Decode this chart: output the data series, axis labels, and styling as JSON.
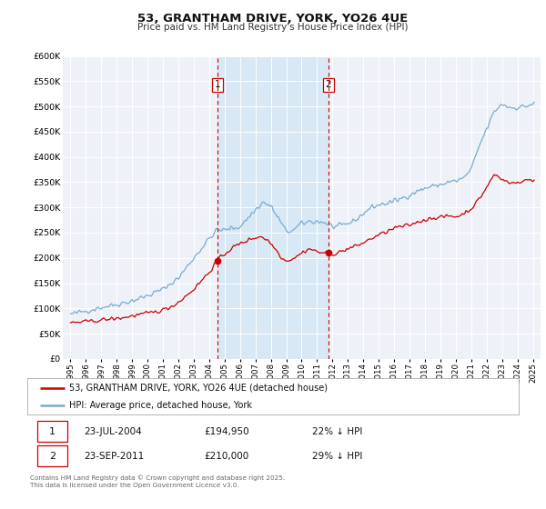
{
  "title": "53, GRANTHAM DRIVE, YORK, YO26 4UE",
  "subtitle": "Price paid vs. HM Land Registry's House Price Index (HPI)",
  "legend_label_red": "53, GRANTHAM DRIVE, YORK, YO26 4UE (detached house)",
  "legend_label_blue": "HPI: Average price, detached house, York",
  "ylim": [
    0,
    600000
  ],
  "yticks": [
    0,
    50000,
    100000,
    150000,
    200000,
    250000,
    300000,
    350000,
    400000,
    450000,
    500000,
    550000,
    600000
  ],
  "xlim_start": 1994.5,
  "xlim_end": 2025.5,
  "background_color": "#ffffff",
  "plot_bg_color": "#eef2f8",
  "grid_color": "#ffffff",
  "red_color": "#cc0000",
  "blue_color": "#7aabcf",
  "shaded_region_color": "#d8e8f4",
  "vline1_x": 2004.55,
  "vline2_x": 2011.73,
  "marker1_x": 2004.55,
  "marker1_y": 194950,
  "marker2_x": 2011.73,
  "marker2_y": 210000,
  "footnote": "Contains HM Land Registry data © Crown copyright and database right 2025.\nThis data is licensed under the Open Government Licence v3.0.",
  "table_row1": [
    "1",
    "23-JUL-2004",
    "£194,950",
    "22% ↓ HPI"
  ],
  "table_row2": [
    "2",
    "23-SEP-2011",
    "£210,000",
    "29% ↓ HPI"
  ]
}
